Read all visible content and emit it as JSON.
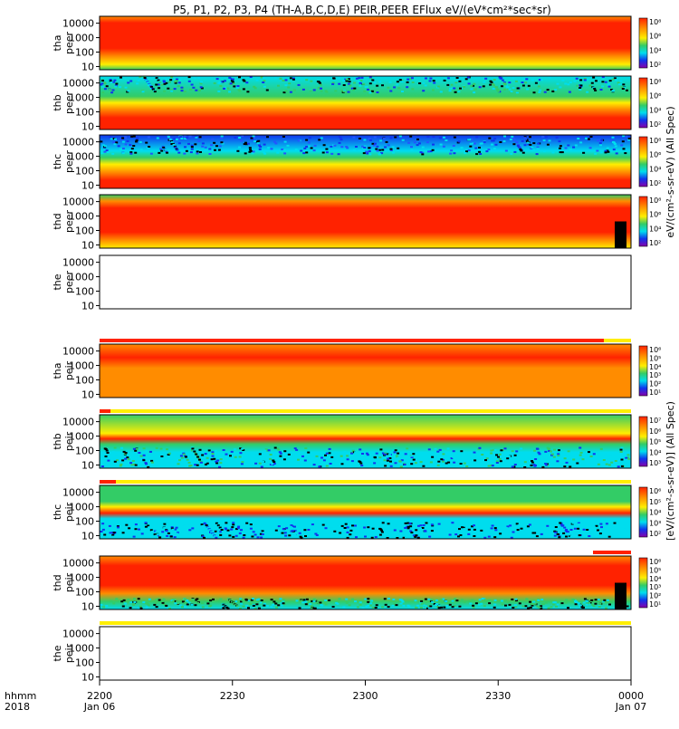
{
  "title": "P5, P1, P2, P3, P4 (TH-A,B,C,D,E) PEIR,PEER EFlux eV/(eV*cm²*sec*sr)",
  "chart_data": {
    "type": "heatmap",
    "title": "P5, P1, P2, P3, P4 (TH-A,B,C,D,E) PEIR,PEER EFlux eV/(eV*cm²*sec*sr)",
    "y_scale": "log",
    "y_ticks": [
      "10",
      "100",
      "1000",
      "10000"
    ],
    "x_axis": {
      "label_rows": [
        "hhmm",
        "2018"
      ],
      "ticks": [
        {
          "label": "2200",
          "date": "Jan 06"
        },
        {
          "label": "2230",
          "date": ""
        },
        {
          "label": "2300",
          "date": ""
        },
        {
          "label": "2330",
          "date": ""
        },
        {
          "label": "0000",
          "date": "Jan 07"
        }
      ]
    },
    "electron_colorbar_label": "eV/(cm²-s-sr-eV) (All Spec)",
    "ion_colorbar_label": "[eV/(cm²-s-sr-eV)] (All Spec)",
    "panels": [
      {
        "probe": "tha",
        "species": "peer",
        "ylabel": "tha peer",
        "has_data": true,
        "cbar_ticks": [
          "10²",
          "10⁴",
          "10⁶",
          "10⁸"
        ]
      },
      {
        "probe": "thb",
        "species": "peer",
        "ylabel": "thb peer",
        "has_data": true,
        "cbar_ticks": [
          "10²",
          "10⁴",
          "10⁶",
          "10⁸"
        ]
      },
      {
        "probe": "thc",
        "species": "peer",
        "ylabel": "thc peer",
        "has_data": true,
        "cbar_ticks": [
          "10²",
          "10⁴",
          "10⁶",
          "10⁸"
        ]
      },
      {
        "probe": "thd",
        "species": "peer",
        "ylabel": "thd peer",
        "has_data": true,
        "cbar_ticks": [
          "10²",
          "10⁴",
          "10⁶",
          "10⁸"
        ]
      },
      {
        "probe": "the",
        "species": "peer",
        "ylabel": "the peer",
        "has_data": false,
        "cbar_ticks": []
      },
      {
        "probe": "tha",
        "species": "peir",
        "ylabel": "tha peir",
        "has_data": true,
        "cbar_ticks": [
          "10¹",
          "10²",
          "10³",
          "10⁴",
          "10⁵",
          "10⁶"
        ]
      },
      {
        "probe": "thb",
        "species": "peir",
        "ylabel": "thb peir",
        "has_data": true,
        "cbar_ticks": [
          "10³",
          "10⁴",
          "10⁵",
          "10⁶",
          "10⁷"
        ]
      },
      {
        "probe": "thc",
        "species": "peir",
        "ylabel": "thc peir",
        "has_data": true,
        "cbar_ticks": [
          "10²",
          "10³",
          "10⁴",
          "10⁵",
          "10⁶"
        ]
      },
      {
        "probe": "thd",
        "species": "peir",
        "ylabel": "thd peir",
        "has_data": true,
        "cbar_ticks": [
          "10¹",
          "10²",
          "10³",
          "10⁴",
          "10⁵",
          "10⁶"
        ]
      },
      {
        "probe": "the",
        "species": "peir",
        "ylabel": "the peir",
        "has_data": false,
        "cbar_ticks": []
      }
    ]
  },
  "colors": {
    "red": "#ff2200",
    "orange": "#ff8c00",
    "yellow": "#ffee00",
    "green": "#33cc66",
    "cyan": "#00ddee",
    "blue": "#1133ee",
    "black": "#000000"
  }
}
